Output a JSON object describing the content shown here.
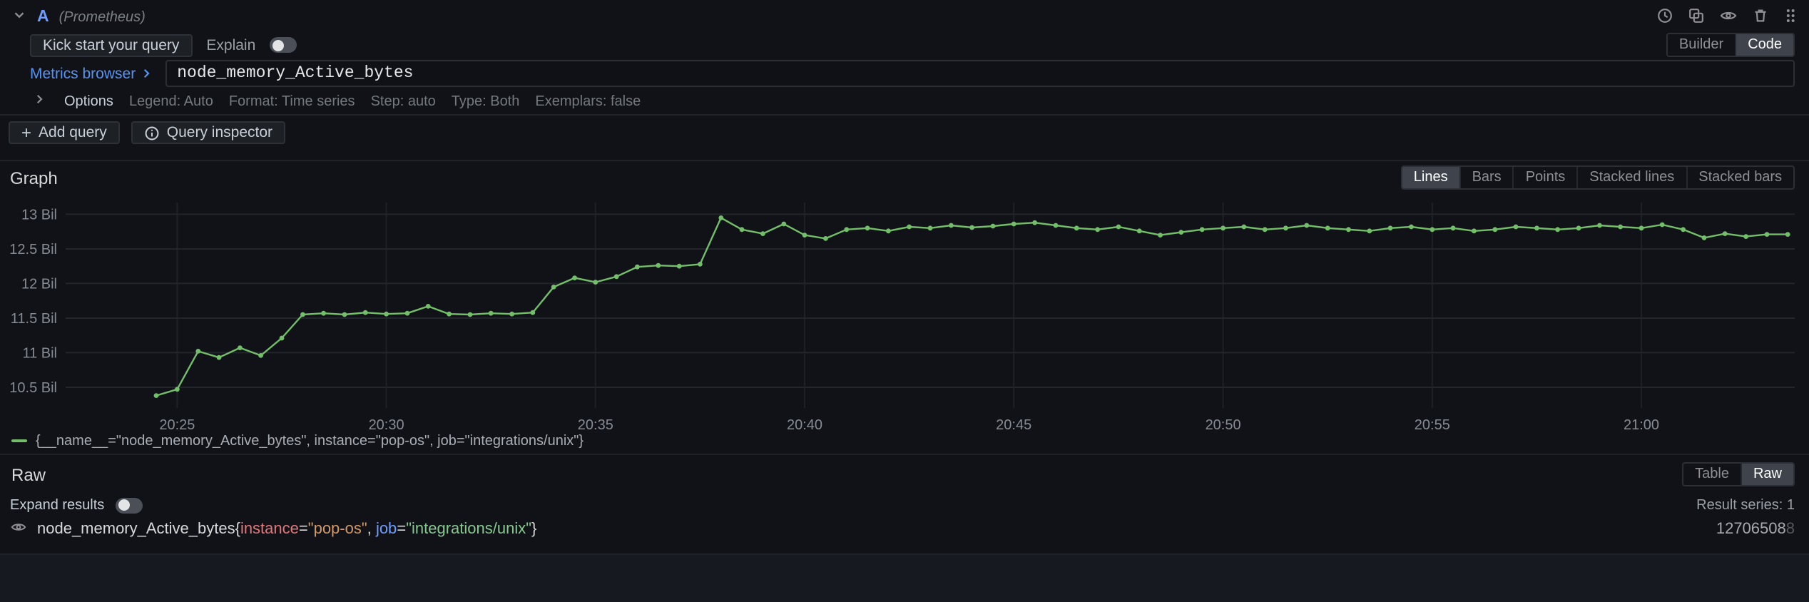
{
  "colors": {
    "accent_blue": "#5794f2",
    "series_green": "#73bf69",
    "background": "#111217"
  },
  "query_row": {
    "ref_id": "A",
    "datasource": "(Prometheus)",
    "toolbar": {
      "kickstart": "Kick start your query",
      "explain": "Explain",
      "builder": "Builder",
      "code": "Code"
    },
    "metrics_browser": "Metrics browser",
    "query_text": "node_memory_Active_bytes",
    "options": {
      "label": "Options",
      "summary": [
        "Legend: Auto",
        "Format: Time series",
        "Step: auto",
        "Type: Both",
        "Exemplars: false"
      ]
    }
  },
  "actions": {
    "add_query": "Add query",
    "query_inspector": "Query inspector"
  },
  "graph": {
    "title": "Graph",
    "modes": [
      "Lines",
      "Bars",
      "Points",
      "Stacked lines",
      "Stacked bars"
    ],
    "active_mode": "Lines",
    "legend": "{__name__=\"node_memory_Active_bytes\", instance=\"pop-os\", job=\"integrations/unix\"}"
  },
  "chart_data": {
    "type": "line",
    "title": "",
    "series_name": "{__name__=\"node_memory_Active_bytes\", instance=\"pop-os\", job=\"integrations/unix\"}",
    "color": "#73bf69",
    "grid": true,
    "legend_position": "bottom-left",
    "ylim": [
      10.2,
      13.17
    ],
    "xlim": [
      "20:22:20",
      "21:03:40"
    ],
    "yticks": [
      10.5,
      11,
      11.5,
      12,
      12.5,
      13
    ],
    "ytick_labels": [
      "10.5 Bil",
      "11 Bil",
      "11.5 Bil",
      "12 Bil",
      "12.5 Bil",
      "13 Bil"
    ],
    "xticks": [
      "20:25",
      "20:30",
      "20:35",
      "20:40",
      "20:45",
      "20:50",
      "20:55",
      "21:00"
    ],
    "unit": "bytes (Bil)",
    "points": [
      [
        "20:24:30",
        10.38
      ],
      [
        "20:25:00",
        10.47
      ],
      [
        "20:25:30",
        11.02
      ],
      [
        "20:26:00",
        10.93
      ],
      [
        "20:26:30",
        11.07
      ],
      [
        "20:27:00",
        10.96
      ],
      [
        "20:27:30",
        11.21
      ],
      [
        "20:28:00",
        11.55
      ],
      [
        "20:28:30",
        11.57
      ],
      [
        "20:29:00",
        11.55
      ],
      [
        "20:29:30",
        11.58
      ],
      [
        "20:30:00",
        11.56
      ],
      [
        "20:30:30",
        11.57
      ],
      [
        "20:31:00",
        11.67
      ],
      [
        "20:31:30",
        11.56
      ],
      [
        "20:32:00",
        11.55
      ],
      [
        "20:32:30",
        11.57
      ],
      [
        "20:33:00",
        11.56
      ],
      [
        "20:33:30",
        11.58
      ],
      [
        "20:34:00",
        11.95
      ],
      [
        "20:34:30",
        12.08
      ],
      [
        "20:35:00",
        12.02
      ],
      [
        "20:35:30",
        12.1
      ],
      [
        "20:36:00",
        12.24
      ],
      [
        "20:36:30",
        12.26
      ],
      [
        "20:37:00",
        12.25
      ],
      [
        "20:37:30",
        12.28
      ],
      [
        "20:38:00",
        12.95
      ],
      [
        "20:38:30",
        12.78
      ],
      [
        "20:39:00",
        12.72
      ],
      [
        "20:39:30",
        12.86
      ],
      [
        "20:40:00",
        12.7
      ],
      [
        "20:40:30",
        12.65
      ],
      [
        "20:41:00",
        12.78
      ],
      [
        "20:41:30",
        12.8
      ],
      [
        "20:42:00",
        12.76
      ],
      [
        "20:42:30",
        12.82
      ],
      [
        "20:43:00",
        12.8
      ],
      [
        "20:43:30",
        12.84
      ],
      [
        "20:44:00",
        12.81
      ],
      [
        "20:44:30",
        12.83
      ],
      [
        "20:45:00",
        12.86
      ],
      [
        "20:45:30",
        12.88
      ],
      [
        "20:46:00",
        12.84
      ],
      [
        "20:46:30",
        12.8
      ],
      [
        "20:47:00",
        12.78
      ],
      [
        "20:47:30",
        12.82
      ],
      [
        "20:48:00",
        12.76
      ],
      [
        "20:48:30",
        12.7
      ],
      [
        "20:49:00",
        12.74
      ],
      [
        "20:49:30",
        12.78
      ],
      [
        "20:50:00",
        12.8
      ],
      [
        "20:50:30",
        12.82
      ],
      [
        "20:51:00",
        12.78
      ],
      [
        "20:51:30",
        12.8
      ],
      [
        "20:52:00",
        12.84
      ],
      [
        "20:52:30",
        12.8
      ],
      [
        "20:53:00",
        12.78
      ],
      [
        "20:53:30",
        12.76
      ],
      [
        "20:54:00",
        12.8
      ],
      [
        "20:54:30",
        12.82
      ],
      [
        "20:55:00",
        12.78
      ],
      [
        "20:55:30",
        12.8
      ],
      [
        "20:56:00",
        12.76
      ],
      [
        "20:56:30",
        12.78
      ],
      [
        "20:57:00",
        12.82
      ],
      [
        "20:57:30",
        12.8
      ],
      [
        "20:58:00",
        12.78
      ],
      [
        "20:58:30",
        12.8
      ],
      [
        "20:59:00",
        12.84
      ],
      [
        "20:59:30",
        12.82
      ],
      [
        "21:00:00",
        12.8
      ],
      [
        "21:00:30",
        12.85
      ],
      [
        "21:01:00",
        12.78
      ],
      [
        "21:01:30",
        12.66
      ],
      [
        "21:02:00",
        12.72
      ],
      [
        "21:02:30",
        12.68
      ],
      [
        "21:03:00",
        12.71
      ],
      [
        "21:03:30",
        12.71
      ]
    ]
  },
  "raw": {
    "title": "Raw",
    "tabs": [
      "Table",
      "Raw"
    ],
    "active_tab": "Raw",
    "expand_label": "Expand results",
    "result_series": "Result series: 1",
    "result": {
      "value": "12706508",
      "value_dim": "8",
      "tokens": [
        {
          "text": "node_memory_Active_bytes{",
          "color": "#d8d9da"
        },
        {
          "text": "instance",
          "color": "#e2777a"
        },
        {
          "text": "=",
          "color": "#d8d9da"
        },
        {
          "text": "\"pop-os\"",
          "color": "#d19a66"
        },
        {
          "text": ", ",
          "color": "#d8d9da"
        },
        {
          "text": "job",
          "color": "#6e9fff"
        },
        {
          "text": "=",
          "color": "#d8d9da"
        },
        {
          "text": "\"integrations/unix\"",
          "color": "#85c98e"
        },
        {
          "text": "}",
          "color": "#d8d9da"
        }
      ]
    }
  }
}
